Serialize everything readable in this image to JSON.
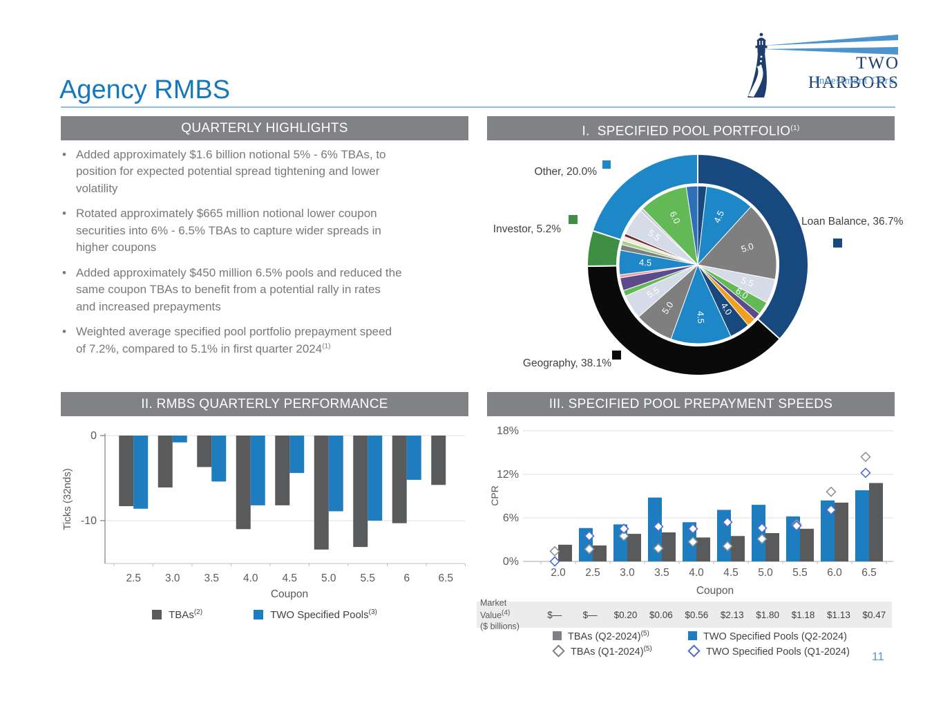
{
  "page": {
    "title": "Agency RMBS",
    "page_number": "11"
  },
  "logo": {
    "name": "TWO HARBORS",
    "subtitle": "Investment Corp."
  },
  "panels": {
    "highlights": {
      "title": "QUARTERLY HIGHLIGHTS",
      "bullets": [
        {
          "text": "Added approximately $1.6 billion notional 5% - 6% TBAs, to position for expected potential spread tightening and lower volatility"
        },
        {
          "text": "Rotated approximately $665 million notional lower coupon securities into 6% - 6.5% TBAs to capture wider spreads in higher coupons"
        },
        {
          "text": "Added approximately $450 million 6.5% pools and reduced the same coupon TBAs to benefit from a potential rally in rates and increased prepayments"
        },
        {
          "text": "Weighted average specified pool portfolio prepayment speed of 7.2%, compared to 5.1% in first quarter 2024",
          "sup": "(1)"
        }
      ]
    },
    "portfolio": {
      "title": "I.  SPECIFIED POOL PORTFOLIO",
      "sup": "(1)"
    },
    "performance": {
      "title": "II. RMBS QUARTERLY PERFORMANCE"
    },
    "prepay": {
      "title": "III. SPECIFIED POOL PREPAYMENT SPEEDS",
      "legend": [
        {
          "label": "TBAs (Q2-2024)",
          "sup": "(5)",
          "marker": "square",
          "color": "#7F8083"
        },
        {
          "label": "TWO Specified Pools (Q2-2024)",
          "marker": "square",
          "color": "#1E7DBE"
        },
        {
          "label": "TBAs (Q1-2024)",
          "sup": "(5)",
          "marker": "diamond",
          "color": "#7F8083"
        },
        {
          "label": "TWO Specified Pools (Q1-2024)",
          "marker": "diamond",
          "color": "#4F6BD5"
        }
      ]
    }
  },
  "chart_data": [
    {
      "type": "pie",
      "title": "I. SPECIFIED POOL PORTFOLIO",
      "outer_ring": [
        {
          "label": "Loan Balance",
          "value": 36.7,
          "display": "Loan Balance, 36.7%",
          "color": "#17497E"
        },
        {
          "label": "Geography",
          "value": 38.1,
          "display": "Geography, 38.1%",
          "color": "#0A0A0A"
        },
        {
          "label": "Investor",
          "value": 5.2,
          "display": "Investor, 5.2%",
          "color": "#3E8F44"
        },
        {
          "label": "Other",
          "value": 20.0,
          "display": "Other, 20.0%",
          "color": "#1E87C8"
        }
      ],
      "inner_ring": [
        {
          "value": 1.7,
          "color": "#17497E"
        },
        {
          "label": "4.5",
          "value": 9.4,
          "color": "#1E87C8"
        },
        {
          "label": "5.0",
          "value": 15.2,
          "color": "#7F7F7F"
        },
        {
          "label": "5.5",
          "value": 4.7,
          "color": "#D5DBE7"
        },
        {
          "label": "6.0",
          "value": 2.5,
          "color": "#62B956"
        },
        {
          "value": 1.4,
          "color": "#5B4B8A"
        },
        {
          "value": 1.7,
          "color": "#F0A01E"
        },
        {
          "label": "4.0",
          "value": 3.9,
          "color": "#17497E"
        },
        {
          "label": "4.5",
          "value": 11.7,
          "color": "#1E87C8"
        },
        {
          "label": "5.0",
          "value": 7.5,
          "color": "#7F7F7F"
        },
        {
          "label": "5.5",
          "value": 4.7,
          "color": "#D5DBE7"
        },
        {
          "value": 1.1,
          "color": "#62B956"
        },
        {
          "value": 2.5,
          "color": "#5B4B8A"
        },
        {
          "value": 0.6,
          "color": "#F29C9C"
        },
        {
          "label": "4.5",
          "value": 4.7,
          "color": "#1E87C8"
        },
        {
          "value": 1.1,
          "color": "#7F7F7F"
        },
        {
          "value": 0.8,
          "color": "#A8D08D"
        },
        {
          "value": 0.8,
          "color": "#EFEADB"
        },
        {
          "value": 0.6,
          "color": "#722F37"
        },
        {
          "label": "5.5",
          "value": 5.2,
          "color": "#D5DBE7"
        },
        {
          "value": 0.6,
          "color": "#C8CDD6"
        },
        {
          "label": "6.0",
          "value": 9.4,
          "color": "#62B956"
        },
        {
          "value": 2.2,
          "color": "#2E6FB7"
        }
      ]
    },
    {
      "type": "bar",
      "title": "II. RMBS QUARTERLY PERFORMANCE",
      "categories": [
        "2.5",
        "3.0",
        "3.5",
        "4.0",
        "4.5",
        "5.0",
        "5.5",
        "6",
        "6.5"
      ],
      "series": [
        {
          "name": "TBAs",
          "sup": "(2)",
          "color": "#595A5C",
          "values": [
            -8.3,
            -6.1,
            -3.7,
            -11.0,
            -8.2,
            -13.4,
            -13.1,
            -10.3,
            -5.8
          ]
        },
        {
          "name": "TWO Specified Pools",
          "sup": "(3)",
          "color": "#1E7DBE",
          "values": [
            -8.6,
            -0.8,
            -5.4,
            -8.2,
            -4.4,
            -8.9,
            -10.0,
            -5.2,
            null
          ]
        }
      ],
      "xlabel": "Coupon",
      "ylabel": "Ticks (32nds)",
      "yticks": [
        0,
        -10
      ],
      "ylim": [
        -15,
        0
      ],
      "grid": true,
      "legend_position": "bottom"
    },
    {
      "type": "bar+scatter",
      "title": "III. SPECIFIED POOL PREPAYMENT SPEEDS",
      "categories": [
        "2.0",
        "2.5",
        "3.0",
        "3.5",
        "4.0",
        "4.5",
        "5.0",
        "5.5",
        "6.0",
        "6.5"
      ],
      "bar_series": [
        {
          "name": "TWO Specified Pools (Q2-2024)",
          "color": "#1E7DBE",
          "values": [
            0,
            4.6,
            5.1,
            8.8,
            5.4,
            7.1,
            7.8,
            6.2,
            8.4,
            9.8
          ]
        },
        {
          "name": "TBAs (Q2-2024)",
          "sup": "(5)",
          "color": "#595A5C",
          "values": [
            2.3,
            2.2,
            3.8,
            4.0,
            3.3,
            3.5,
            3.9,
            4.5,
            8.1,
            10.8
          ]
        }
      ],
      "scatter_series": [
        {
          "name": "TBAs (Q1-2024)",
          "sup": "(5)",
          "stroke": "#909295",
          "values": [
            1.4,
            1.7,
            3.5,
            1.8,
            2.7,
            2.1,
            3.1,
            5.1,
            9.6,
            14.4
          ]
        },
        {
          "name": "TWO Specified Pools (Q1-2024)",
          "stroke": "#4F6BD5",
          "values": [
            0,
            3.5,
            4.5,
            4.8,
            4.5,
            5.4,
            4.6,
            4.9,
            7.1,
            12.2
          ]
        }
      ],
      "xlabel": "Coupon",
      "ylabel": "CPR",
      "ytick_labels": [
        "0%",
        "6%",
        "12%",
        "18%"
      ],
      "ytick_values": [
        0,
        6,
        12,
        18
      ],
      "ylim": [
        0,
        18
      ],
      "market_value_row": {
        "label": "Market Value",
        "sup": "(4)",
        "sublabel": "($ billions)",
        "values": [
          "$—",
          "$—",
          "$0.20",
          "$0.06",
          "$0.56",
          "$2.13",
          "$1.80",
          "$1.18",
          "$1.13",
          "$0.47"
        ]
      }
    }
  ]
}
